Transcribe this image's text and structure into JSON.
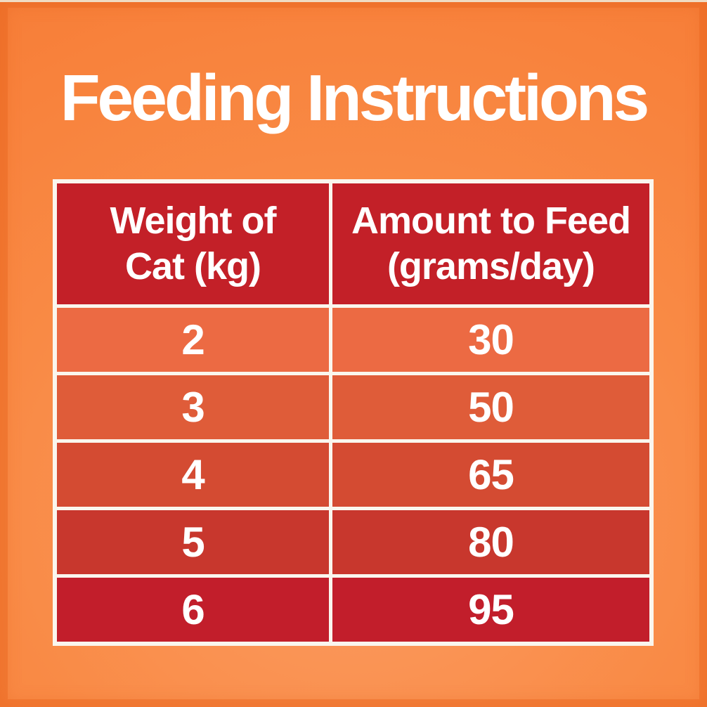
{
  "page": {
    "title": "Feeding Instructions"
  },
  "colors": {
    "background_orange": "#F8823C",
    "background_light_orange": "#FB9D63",
    "frame_orange": "#EF712E",
    "table_border_white": "#FAF6EE",
    "header_red": "#C32028",
    "text_white": "#FFFFFF",
    "row_colors": [
      "#EC6A43",
      "#DF5C39",
      "#D44B32",
      "#C8372D",
      "#C21E2B"
    ]
  },
  "table": {
    "columns": [
      "Weight of\nCat (kg)",
      "Amount to Feed\n(grams/day)"
    ],
    "rows": [
      {
        "weight": "2",
        "amount": "30",
        "color": "#EC6A43"
      },
      {
        "weight": "3",
        "amount": "50",
        "color": "#DF5C39"
      },
      {
        "weight": "4",
        "amount": "65",
        "color": "#D44B32"
      },
      {
        "weight": "5",
        "amount": "80",
        "color": "#C8372D"
      },
      {
        "weight": "6",
        "amount": "95",
        "color": "#C21E2B"
      }
    ]
  },
  "chart_data": {
    "type": "table",
    "title": "Feeding Instructions",
    "columns": [
      "Weight of Cat (kg)",
      "Amount to Feed (grams/day)"
    ],
    "rows": [
      [
        2,
        30
      ],
      [
        3,
        50
      ],
      [
        4,
        65
      ],
      [
        5,
        80
      ],
      [
        6,
        95
      ]
    ]
  }
}
